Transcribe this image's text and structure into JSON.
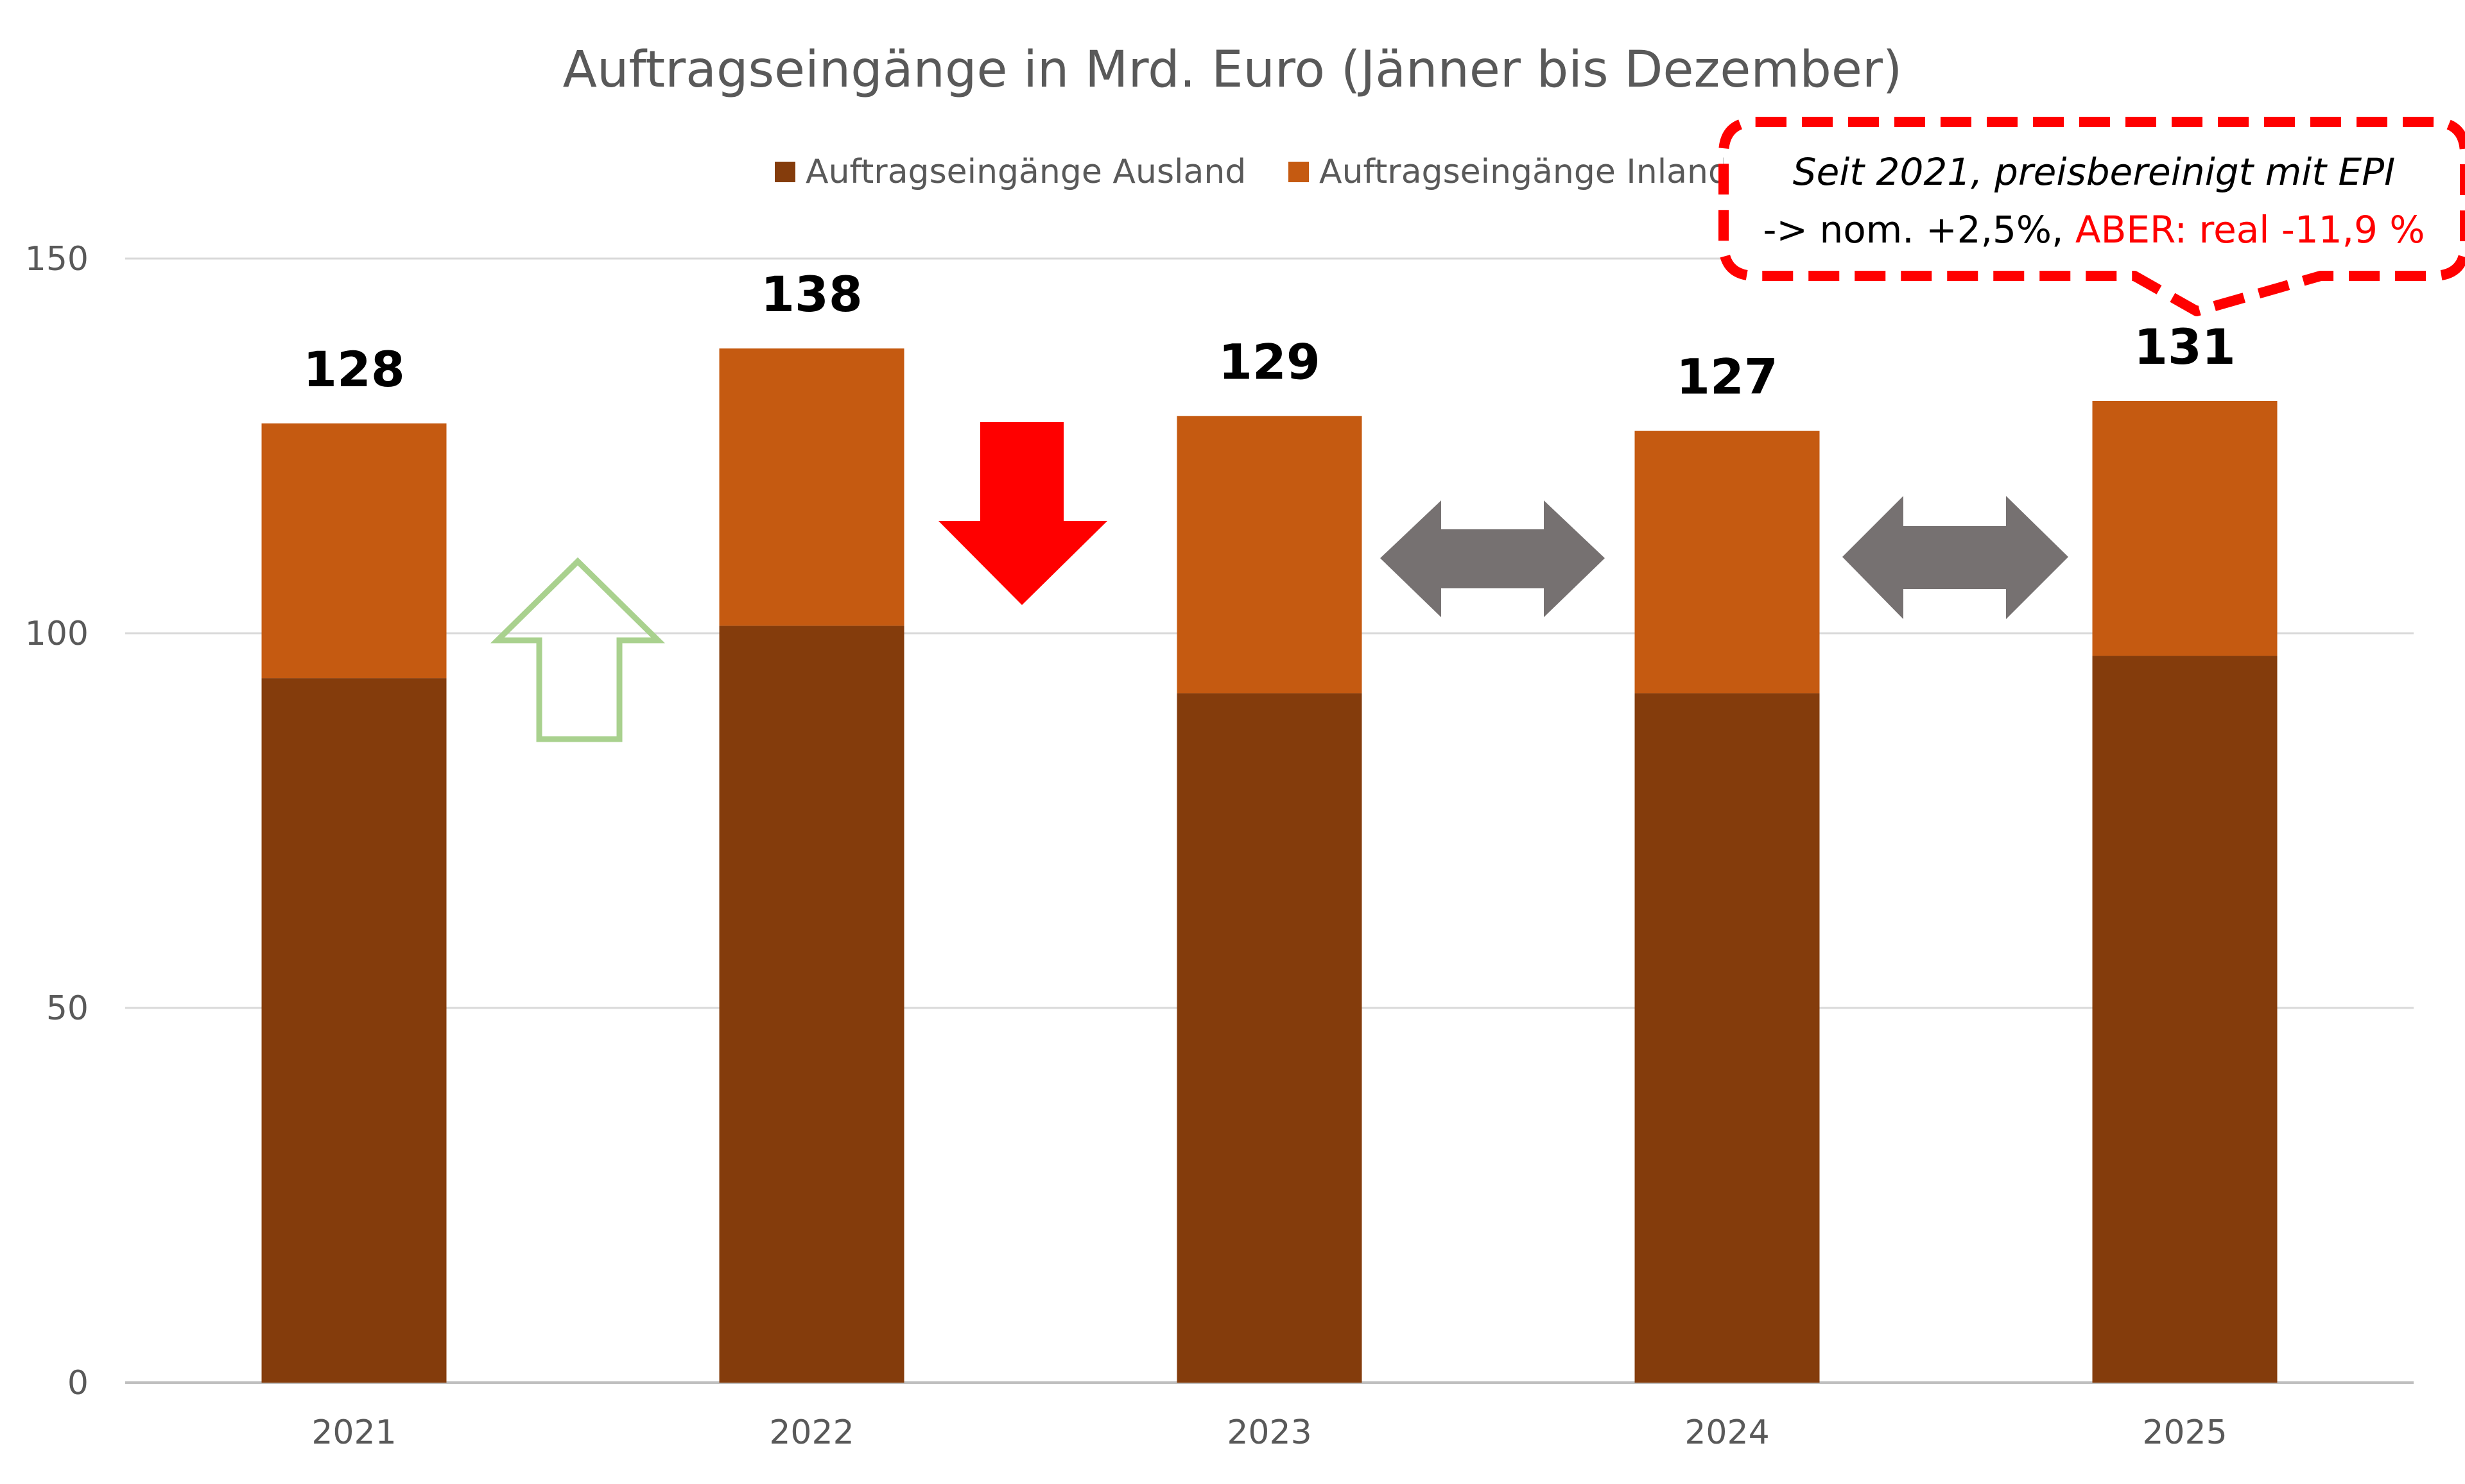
{
  "chart_data": {
    "type": "bar",
    "stacked": true,
    "title": "Auftragseingänge in Mrd. Euro (Jänner bis Dezember)",
    "xlabel": "",
    "ylabel": "",
    "categories": [
      "2021",
      "2022",
      "2023",
      "2024",
      "2025"
    ],
    "series": [
      {
        "name": "Auftragseingänge Ausland",
        "values": [
          94,
          101,
          92,
          92,
          97
        ]
      },
      {
        "name": "Auftragseingänge Inland",
        "values": [
          34,
          37,
          37,
          35,
          34
        ]
      }
    ],
    "totals": [
      "128",
      "138",
      "129",
      "127",
      "131"
    ],
    "ylim": [
      0,
      150
    ],
    "yticks": [
      "0",
      "50",
      "100",
      "150"
    ],
    "grid": true,
    "legend_position": "top-center",
    "colors": {
      "ausland": "#843C0C",
      "inland": "#C55A11",
      "grid": "#D9D9D9",
      "axis": "#BFBFBF"
    },
    "annotations": {
      "arrows": [
        {
          "between": [
            "2021",
            "2022"
          ],
          "direction": "up",
          "style": "outline",
          "color": "#A9D18E"
        },
        {
          "between": [
            "2022",
            "2023"
          ],
          "direction": "down",
          "style": "filled",
          "color": "#FF0000"
        },
        {
          "between": [
            "2023",
            "2024"
          ],
          "direction": "both",
          "style": "filled",
          "color": "#767171"
        },
        {
          "between": [
            "2024",
            "2025"
          ],
          "direction": "both",
          "style": "filled",
          "color": "#767171"
        }
      ],
      "callout": {
        "line1": "Seit 2021, preisbereinigt mit EPI",
        "line2_black": "-> nom. +2,5%, ",
        "line2_red": "ABER: real -11,9 %",
        "border_color": "#FF0000",
        "highlight_color": "#FF0000"
      }
    }
  }
}
